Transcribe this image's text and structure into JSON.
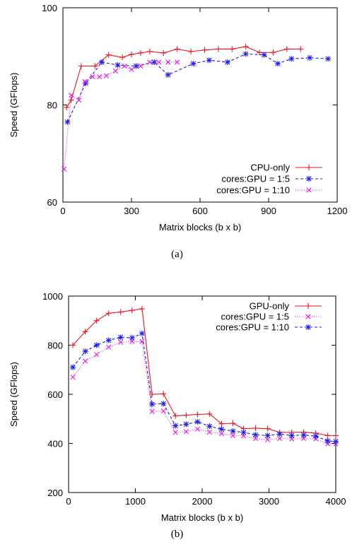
{
  "chart_data": [
    {
      "type": "line",
      "caption": "(a)",
      "xlabel": "Matrix blocks (b x b)",
      "ylabel": "Speed (GFlops)",
      "xlim": [
        0,
        1200
      ],
      "ylim": [
        60,
        100
      ],
      "xticks": [
        0,
        300,
        600,
        900,
        1200
      ],
      "yticks": [
        60,
        80,
        100
      ],
      "legend_position": "bottom-right",
      "series": [
        {
          "name": "CPU-only",
          "color": "#e8141c",
          "dash": "",
          "marker": "plus",
          "points": [
            [
              16,
              79.5
            ],
            [
              36,
              81
            ],
            [
              80,
              88
            ],
            [
              140,
              88
            ],
            [
              200,
              90.3
            ],
            [
              260,
              89.8
            ],
            [
              300,
              90.4
            ],
            [
              340,
              90.7
            ],
            [
              380,
              91
            ],
            [
              440,
              90.7
            ],
            [
              500,
              91.5
            ],
            [
              560,
              91
            ],
            [
              620,
              91.3
            ],
            [
              680,
              91.5
            ],
            [
              740,
              91.5
            ],
            [
              800,
              92
            ],
            [
              860,
              90.8
            ],
            [
              920,
              90.8
            ],
            [
              980,
              91.5
            ],
            [
              1040,
              91.5
            ]
          ]
        },
        {
          "name": "cores:GPU = 1:5",
          "color": "#1a1ae6",
          "dash": "4,3",
          "marker": "star",
          "points": [
            [
              20,
              76.5
            ],
            [
              100,
              84.5
            ],
            [
              170,
              88.8
            ],
            [
              240,
              88.2
            ],
            [
              320,
              88
            ],
            [
              400,
              88.8
            ],
            [
              460,
              86.2
            ],
            [
              570,
              88.5
            ],
            [
              640,
              89.2
            ],
            [
              720,
              88.8
            ],
            [
              800,
              90.5
            ],
            [
              880,
              90.3
            ],
            [
              940,
              88.5
            ],
            [
              1000,
              89.5
            ],
            [
              1080,
              89.7
            ],
            [
              1160,
              89.5
            ]
          ]
        },
        {
          "name": "cores:GPU = 1:10",
          "color": "#e619e6",
          "dash": "1,2",
          "marker": "cross",
          "points": [
            [
              5,
              66.8
            ],
            [
              36,
              82
            ],
            [
              70,
              81
            ],
            [
              96,
              84.8
            ],
            [
              130,
              85.8
            ],
            [
              160,
              85.8
            ],
            [
              190,
              86
            ],
            [
              230,
              87
            ],
            [
              270,
              88
            ],
            [
              300,
              87.3
            ],
            [
              340,
              88
            ],
            [
              380,
              88.8
            ],
            [
              420,
              88.8
            ],
            [
              460,
              88.8
            ],
            [
              500,
              88.8
            ]
          ]
        }
      ]
    },
    {
      "type": "line",
      "caption": "(b)",
      "xlabel": "Matrix blocks (b x b)",
      "ylabel": "Speed (GFlops)",
      "xlim": [
        0,
        4000
      ],
      "ylim": [
        200,
        1000
      ],
      "xticks": [
        0,
        1000,
        2000,
        3000,
        4000
      ],
      "yticks": [
        200,
        400,
        600,
        800,
        1000
      ],
      "legend_position": "top-right",
      "series": [
        {
          "name": "GPU-only",
          "color": "#e8141c",
          "dash": "",
          "marker": "plus",
          "points": [
            [
              64,
              800
            ],
            [
              250,
              855
            ],
            [
              420,
              900
            ],
            [
              600,
              930
            ],
            [
              780,
              935
            ],
            [
              950,
              942
            ],
            [
              1100,
              948
            ],
            [
              1250,
              600
            ],
            [
              1420,
              602
            ],
            [
              1600,
              512
            ],
            [
              1760,
              515
            ],
            [
              1930,
              518
            ],
            [
              2110,
              520
            ],
            [
              2290,
              480
            ],
            [
              2460,
              482
            ],
            [
              2620,
              460
            ],
            [
              2800,
              462
            ],
            [
              2980,
              460
            ],
            [
              3160,
              445
            ],
            [
              3340,
              445
            ],
            [
              3520,
              446
            ],
            [
              3700,
              442
            ],
            [
              3880,
              432
            ],
            [
              4000,
              432
            ]
          ]
        },
        {
          "name": "cores:GPU = 1:5",
          "color": "#e619e6",
          "dash": "1,2",
          "marker": "cross",
          "points": [
            [
              64,
              670
            ],
            [
              250,
              735
            ],
            [
              420,
              762
            ],
            [
              600,
              792
            ],
            [
              780,
              812
            ],
            [
              950,
              815
            ],
            [
              1100,
              815
            ],
            [
              1250,
              530
            ],
            [
              1420,
              532
            ],
            [
              1600,
              445
            ],
            [
              1760,
              448
            ],
            [
              1930,
              458
            ],
            [
              2110,
              446
            ],
            [
              2290,
              440
            ],
            [
              2460,
              432
            ],
            [
              2620,
              430
            ],
            [
              2800,
              420
            ],
            [
              2980,
              415
            ],
            [
              3160,
              420
            ],
            [
              3340,
              418
            ],
            [
              3520,
              420
            ],
            [
              3700,
              418
            ],
            [
              3880,
              398
            ],
            [
              4000,
              398
            ]
          ]
        },
        {
          "name": "cores:GPU = 1:10",
          "color": "#1a1ae6",
          "dash": "4,3",
          "marker": "star",
          "points": [
            [
              64,
              710
            ],
            [
              250,
              775
            ],
            [
              420,
              800
            ],
            [
              600,
              820
            ],
            [
              780,
              832
            ],
            [
              950,
              830
            ],
            [
              1100,
              848
            ],
            [
              1250,
              560
            ],
            [
              1420,
              562
            ],
            [
              1600,
              472
            ],
            [
              1760,
              478
            ],
            [
              1930,
              488
            ],
            [
              2110,
              470
            ],
            [
              2290,
              458
            ],
            [
              2460,
              450
            ],
            [
              2620,
              445
            ],
            [
              2800,
              435
            ],
            [
              2980,
              432
            ],
            [
              3160,
              438
            ],
            [
              3340,
              432
            ],
            [
              3520,
              434
            ],
            [
              3700,
              430
            ],
            [
              3880,
              410
            ],
            [
              4000,
              408
            ]
          ]
        }
      ]
    }
  ]
}
